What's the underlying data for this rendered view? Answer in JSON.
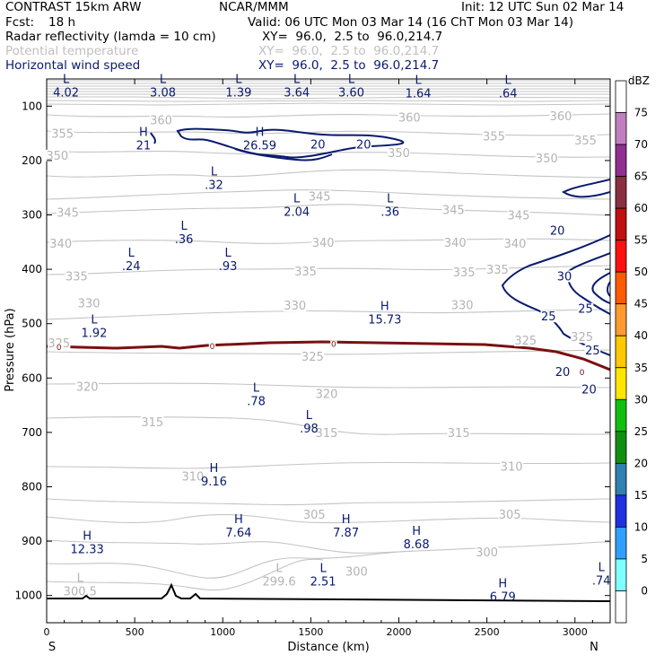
{
  "header": {
    "model": "CONTRAST 15km ARW",
    "org": "NCAR/MMM",
    "init": "Init: 12 UTC Sun 02 Mar 14",
    "fcst_label": "Fcst:",
    "fcst_value": "18 h",
    "valid": "Valid: 06 UTC Mon 03 Mar 14 (16 ChT Mon 03 Mar 14)",
    "field1": "Radar reflectivity (lamda = 10 cm)",
    "field1_xy": "XY=  96.0,  2.5 to  96.0,214.7",
    "field2": "Potential temperature",
    "field2_xy": "XY=  96.0,  2.5 to  96.0,214.7",
    "field3": "Horizontal wind speed",
    "field3_xy": "XY=  96.0,  2.5 to  96.0,214.7"
  },
  "colors": {
    "theta": "#bdbdbd",
    "wind": "#0a1a6e",
    "freezing": "#7a1010",
    "terrain": "#000000"
  },
  "chart_data": {
    "type": "cross-section",
    "xlabel": "Distance (km)",
    "ylabel": "Pressure (hPa)",
    "xlim": [
      0,
      3200
    ],
    "ylim": [
      1050,
      50
    ],
    "x_ticks": [
      0,
      500,
      1000,
      1500,
      2000,
      2500,
      3000
    ],
    "y_ticks": [
      100,
      200,
      300,
      400,
      500,
      600,
      700,
      800,
      900,
      1000
    ],
    "south_label": "S",
    "north_label": "N",
    "legend": {
      "title": "dBZ",
      "levels": [
        "75",
        "70",
        "65",
        "60",
        "55",
        "50",
        "45",
        "40",
        "35",
        "30",
        "25",
        "20",
        "15",
        "10",
        "5",
        "0"
      ],
      "colors": [
        "#ffffff",
        "#c080c0",
        "#903090",
        "#8a3040",
        "#c01010",
        "#ff1010",
        "#ff5a00",
        "#ff9a30",
        "#ffc800",
        "#ffe600",
        "#10c010",
        "#109010",
        "#3080b0",
        "#2030e0",
        "#30a0ff",
        "#80ffff",
        "#ffffff"
      ]
    },
    "theta_labels": [
      {
        "x": 650,
        "p": 125,
        "v": "360"
      },
      {
        "x": 2060,
        "p": 120,
        "v": "360"
      },
      {
        "x": 2920,
        "p": 118,
        "v": "360"
      },
      {
        "x": 90,
        "p": 150,
        "v": "355"
      },
      {
        "x": 2540,
        "p": 155,
        "v": "355"
      },
      {
        "x": 3060,
        "p": 162,
        "v": "355"
      },
      {
        "x": 60,
        "p": 190,
        "v": "350"
      },
      {
        "x": 2000,
        "p": 185,
        "v": "350"
      },
      {
        "x": 2840,
        "p": 195,
        "v": "350"
      },
      {
        "x": 1550,
        "p": 265,
        "v": "345"
      },
      {
        "x": 120,
        "p": 295,
        "v": "345"
      },
      {
        "x": 2310,
        "p": 290,
        "v": "345"
      },
      {
        "x": 2680,
        "p": 300,
        "v": "345"
      },
      {
        "x": 80,
        "p": 352,
        "v": "340"
      },
      {
        "x": 1570,
        "p": 350,
        "v": "340"
      },
      {
        "x": 2320,
        "p": 350,
        "v": "340"
      },
      {
        "x": 2660,
        "p": 352,
        "v": "340"
      },
      {
        "x": 170,
        "p": 412,
        "v": "335"
      },
      {
        "x": 1470,
        "p": 403,
        "v": "335"
      },
      {
        "x": 2370,
        "p": 405,
        "v": "335"
      },
      {
        "x": 2560,
        "p": 400,
        "v": "335"
      },
      {
        "x": 240,
        "p": 462,
        "v": "330"
      },
      {
        "x": 1410,
        "p": 466,
        "v": "330"
      },
      {
        "x": 2360,
        "p": 465,
        "v": "330"
      },
      {
        "x": 70,
        "p": 535,
        "v": "325"
      },
      {
        "x": 1510,
        "p": 560,
        "v": "325"
      },
      {
        "x": 2720,
        "p": 530,
        "v": "325"
      },
      {
        "x": 3040,
        "p": 524,
        "v": "325"
      },
      {
        "x": 230,
        "p": 615,
        "v": "320"
      },
      {
        "x": 1590,
        "p": 628,
        "v": "320"
      },
      {
        "x": 600,
        "p": 680,
        "v": "315"
      },
      {
        "x": 1590,
        "p": 700,
        "v": "315"
      },
      {
        "x": 2340,
        "p": 700,
        "v": "315"
      },
      {
        "x": 830,
        "p": 780,
        "v": "310"
      },
      {
        "x": 2640,
        "p": 762,
        "v": "310"
      },
      {
        "x": 1520,
        "p": 850,
        "v": "305"
      },
      {
        "x": 2630,
        "p": 850,
        "v": "305"
      },
      {
        "x": 2500,
        "p": 920,
        "v": "300"
      },
      {
        "x": 1760,
        "p": 955,
        "v": "300"
      }
    ],
    "hl_labels": [
      {
        "x": 110,
        "p": 62,
        "t": "L",
        "v": "4.02"
      },
      {
        "x": 660,
        "p": 62,
        "t": "L",
        "v": "3.08"
      },
      {
        "x": 1090,
        "p": 62,
        "t": "L",
        "v": "1.39"
      },
      {
        "x": 1420,
        "p": 62,
        "t": "L",
        "v": "3.64"
      },
      {
        "x": 1730,
        "p": 62,
        "t": "L",
        "v": "3.60"
      },
      {
        "x": 2110,
        "p": 64,
        "t": "L",
        "v": "1.64"
      },
      {
        "x": 2620,
        "p": 64,
        "t": "L",
        "v": ".64"
      },
      {
        "x": 550,
        "p": 160,
        "t": "H",
        "v": "21"
      },
      {
        "x": 1210,
        "p": 160,
        "t": "H",
        "v": "26.59"
      },
      {
        "x": 950,
        "p": 232,
        "t": "L",
        "v": ".32"
      },
      {
        "x": 1420,
        "p": 282,
        "t": "L",
        "v": "2.04"
      },
      {
        "x": 1950,
        "p": 282,
        "t": "L",
        "v": ".36"
      },
      {
        "x": 780,
        "p": 332,
        "t": "L",
        "v": ".36"
      },
      {
        "x": 480,
        "p": 382,
        "t": "L",
        "v": ".24"
      },
      {
        "x": 1030,
        "p": 382,
        "t": "L",
        "v": ".93"
      },
      {
        "x": 1920,
        "p": 480,
        "t": "H",
        "v": "15.73"
      },
      {
        "x": 270,
        "p": 505,
        "t": "L",
        "v": "1.92"
      },
      {
        "x": 1190,
        "p": 630,
        "t": "L",
        "v": ".78"
      },
      {
        "x": 1490,
        "p": 680,
        "t": "L",
        "v": ".98"
      },
      {
        "x": 950,
        "p": 778,
        "t": "H",
        "v": "9.16"
      },
      {
        "x": 1090,
        "p": 872,
        "t": "H",
        "v": "7.64"
      },
      {
        "x": 1700,
        "p": 872,
        "t": "H",
        "v": "7.87"
      },
      {
        "x": 2100,
        "p": 893,
        "t": "H",
        "v": "8.68"
      },
      {
        "x": 230,
        "p": 902,
        "t": "H",
        "v": "12.33"
      },
      {
        "x": 1320,
        "p": 962,
        "t": "L",
        "v": "299.6"
      },
      {
        "x": 1570,
        "p": 962,
        "t": "L",
        "v": "2.51"
      },
      {
        "x": 190,
        "p": 980,
        "t": "L",
        "v": "300.5"
      },
      {
        "x": 2590,
        "p": 990,
        "t": "H",
        "v": "6.79"
      },
      {
        "x": 3150,
        "p": 960,
        "t": "L",
        "v": ".74"
      }
    ],
    "wind_labels": [
      {
        "x": 1540,
        "p": 170,
        "v": "20"
      },
      {
        "x": 1800,
        "p": 170,
        "v": "20"
      },
      {
        "x": 2900,
        "p": 328,
        "v": "20"
      },
      {
        "x": 2940,
        "p": 412,
        "v": "30"
      },
      {
        "x": 2850,
        "p": 486,
        "v": "25"
      },
      {
        "x": 3100,
        "p": 548,
        "v": "25"
      },
      {
        "x": 3060,
        "p": 472,
        "v": "25"
      },
      {
        "x": 2930,
        "p": 588,
        "v": "20"
      },
      {
        "x": 3080,
        "p": 620,
        "v": "20"
      }
    ],
    "freezing_labels": [
      {
        "x": 70,
        "p": 543,
        "v": "0"
      },
      {
        "x": 940,
        "p": 542,
        "v": "0"
      },
      {
        "x": 1630,
        "p": 538,
        "v": "0"
      },
      {
        "x": 3040,
        "p": 590,
        "v": "0"
      }
    ]
  }
}
